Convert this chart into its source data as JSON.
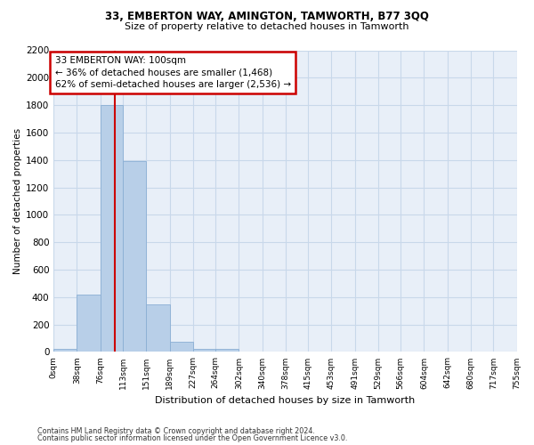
{
  "title1": "33, EMBERTON WAY, AMINGTON, TAMWORTH, B77 3QQ",
  "title2": "Size of property relative to detached houses in Tamworth",
  "xlabel": "Distribution of detached houses by size in Tamworth",
  "ylabel": "Number of detached properties",
  "annotation_title": "33 EMBERTON WAY: 100sqm",
  "annotation_line1": "← 36% of detached houses are smaller (1,468)",
  "annotation_line2": "62% of semi-detached houses are larger (2,536) →",
  "footer1": "Contains HM Land Registry data © Crown copyright and database right 2024.",
  "footer2": "Contains public sector information licensed under the Open Government Licence v3.0.",
  "property_size": 100,
  "bin_edges": [
    0,
    38,
    76,
    113,
    151,
    189,
    227,
    264,
    302,
    340,
    378,
    415,
    453,
    491,
    529,
    566,
    604,
    642,
    680,
    717,
    755
  ],
  "bar_heights": [
    20,
    420,
    1800,
    1390,
    345,
    75,
    25,
    20,
    0,
    0,
    0,
    0,
    0,
    0,
    0,
    0,
    0,
    0,
    0,
    0
  ],
  "bar_color": "#b8cfe8",
  "bar_edge_color": "#8aafd4",
  "grid_color": "#c8d8ea",
  "vline_color": "#cc0000",
  "annotation_box_color": "#cc0000",
  "ylim": [
    0,
    2200
  ],
  "yticks": [
    0,
    200,
    400,
    600,
    800,
    1000,
    1200,
    1400,
    1600,
    1800,
    2000,
    2200
  ],
  "bg_color": "#e8eff8"
}
